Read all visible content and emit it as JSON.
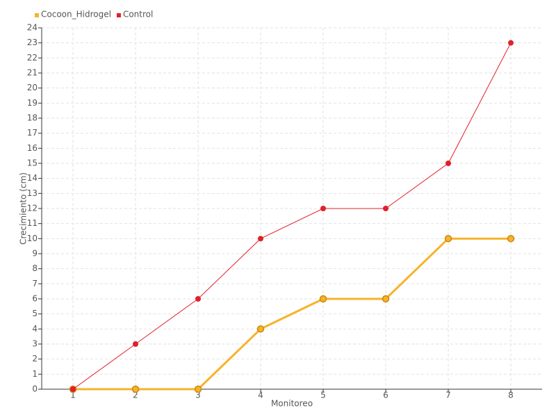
{
  "chart_data": {
    "type": "line",
    "x_label": "Monitoreo",
    "y_label": "Crecimiento (cm)",
    "x": [
      1,
      2,
      3,
      4,
      5,
      6,
      7,
      8
    ],
    "xlim": [
      0.5,
      8.5
    ],
    "xticks": [
      1,
      2,
      3,
      4,
      5,
      6,
      7,
      8
    ],
    "ylim": [
      0,
      24
    ],
    "yticks": [
      0,
      1,
      2,
      3,
      4,
      5,
      6,
      7,
      8,
      9,
      10,
      11,
      12,
      13,
      14,
      15,
      16,
      17,
      18,
      19,
      20,
      21,
      22,
      23,
      24
    ],
    "grid": true,
    "legend": "top-left",
    "series": [
      {
        "name": "Cocoon_Hidrogel",
        "color": "#f7b22a",
        "values": [
          0,
          0,
          0,
          4,
          6,
          6,
          10,
          10
        ]
      },
      {
        "name": "Control",
        "color": "#e0202a",
        "values": [
          0,
          3,
          6,
          10,
          12,
          12,
          15,
          23
        ]
      }
    ]
  }
}
